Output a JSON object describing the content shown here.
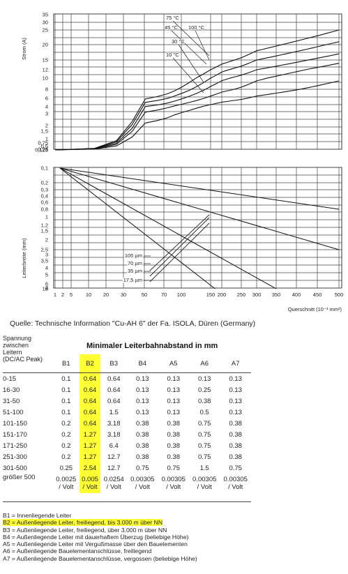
{
  "chart": {
    "top_ylabel": "Strom (A)",
    "bottom_ylabel": "Leiterbreite (mm)",
    "xlabel": "Querschnitt (10⁻³ mm²)",
    "top_ticks": [
      "35",
      "30",
      "25",
      "20",
      "15",
      "12",
      "10",
      "8",
      "6",
      "4",
      "3",
      "2",
      "1",
      "1,5",
      "0,75",
      "0,5",
      "0,25",
      "0,125"
    ],
    "bottom_ticks": [
      "0,1",
      "0,2",
      "0,3",
      "0,4",
      "0,6",
      "0,8",
      "1",
      "1,2",
      "1,5",
      "2",
      "2,5",
      "3",
      "3,5",
      "4",
      "5",
      "6",
      "7",
      "8",
      "10"
    ],
    "x_ticks": [
      "1",
      "2",
      "5",
      "10",
      "20",
      "30",
      "50",
      "70",
      "100",
      "150",
      "200",
      "250",
      "300",
      "350",
      "400",
      "450",
      "500"
    ],
    "temp_labels": [
      "75 °C",
      "45 °C",
      "100 °C",
      "30 °C",
      "10 °C"
    ],
    "thickness_labels": [
      "105 µm",
      "70 µm",
      "35 µm",
      "17,5 µm"
    ]
  },
  "chart_data": {
    "type": "line",
    "title": "",
    "xlabel": "Querschnitt (10⁻³ mm²)",
    "upper_panel": {
      "ylabel": "Strom (A)",
      "x": [
        1,
        50,
        150,
        300,
        500
      ],
      "series": [
        {
          "name": "10 °C",
          "values": [
            0.125,
            2.2,
            4.5,
            6.5,
            9.5
          ]
        },
        {
          "name": "30 °C",
          "values": [
            0.125,
            3.2,
            6.5,
            9.5,
            14
          ]
        },
        {
          "name": "45 °C",
          "values": [
            0.125,
            4.0,
            8.5,
            12,
            17
          ]
        },
        {
          "name": "75 °C",
          "values": [
            0.125,
            5.0,
            10,
            15,
            21
          ]
        },
        {
          "name": "100 °C",
          "values": [
            0.125,
            5.8,
            12,
            18,
            25
          ]
        }
      ]
    },
    "lower_panel": {
      "ylabel": "Leiterbreite (mm)",
      "series": [
        {
          "name": "105 µm",
          "x": [
            1,
            500
          ],
          "values": [
            0.1,
            0.8
          ]
        },
        {
          "name": "70 µm",
          "x": [
            1,
            500
          ],
          "values": [
            0.1,
            2.5
          ]
        },
        {
          "name": "35 µm",
          "x": [
            1,
            350
          ],
          "values": [
            0.1,
            10
          ]
        },
        {
          "name": "17,5 µm",
          "x": [
            1,
            170
          ],
          "values": [
            0.1,
            10
          ]
        }
      ]
    }
  },
  "source": "Quelle: Technische Information \"Cu-AH 6\" der Fa. ISOLA, Düren (Germany)",
  "table": {
    "header_left": [
      "Spannung",
      "zwischen",
      "Leitern",
      "(DC/AC Peak)"
    ],
    "title": "Minimaler Leiterbahnabstand in mm",
    "columns": [
      "B1",
      "B2",
      "B3",
      "B4",
      "A5",
      "A6",
      "A7"
    ],
    "rows": [
      {
        "label": "0-15",
        "cells": [
          "0.1",
          "0.64",
          "0.64",
          "0.13",
          "0.13",
          "0.13",
          "0.13"
        ]
      },
      {
        "label": "16-30",
        "cells": [
          "0.1",
          "0.64",
          "0.64",
          "0.13",
          "0.13",
          "0.25",
          "0.13"
        ]
      },
      {
        "label": "31-50",
        "cells": [
          "0.1",
          "0.64",
          "0.64",
          "0.13",
          "0.13",
          "0.38",
          "0.13"
        ]
      },
      {
        "label": "51-100",
        "cells": [
          "0.1",
          "0.64",
          "1.5",
          "0.13",
          "0.13",
          "0.5",
          "0.13"
        ]
      },
      {
        "label": "101-150",
        "cells": [
          "0.2",
          "0.64",
          "3.18",
          "0.38",
          "0.38",
          "0.75",
          "0.38"
        ]
      },
      {
        "label": "151-170",
        "cells": [
          "0.2",
          "1.27",
          "3.18",
          "0.38",
          "0.38",
          "0.75",
          "0.38"
        ]
      },
      {
        "label": "171-250",
        "cells": [
          "0.2",
          "1.27",
          "6.4",
          "0.38",
          "0.38",
          "0.75",
          "0.38"
        ]
      },
      {
        "label": "251-300",
        "cells": [
          "0.2",
          "1.27",
          "12.7",
          "0.38",
          "0.38",
          "0.75",
          "0.38"
        ]
      },
      {
        "label": "301-500",
        "cells": [
          "0.25",
          "2.54",
          "12.7",
          "0.75",
          "0.75",
          "1.5",
          "0.75"
        ]
      }
    ],
    "last_row": {
      "label": "größer 500",
      "cells": [
        "0.0025",
        "0.005",
        "0.0254",
        "0.00305",
        "0.00305",
        "0.00305",
        "0.00305"
      ],
      "unit": "/ Volt"
    }
  },
  "legend": [
    "B1 = Innenliegende Leiter",
    "B2 = Außenliegende Leiter, freiliegend, bis 3.000 m über NN",
    "B3 = Außenliegende Leiter, freiliegend, über 3.000 m über NN",
    "B4 = Außenliegende Leiter mit dauerhaftem Überzug (beliebige Höhe)",
    "A5 = Außenliegende Leiter mit Vergußmasse über den Bauelementen",
    "A6 = Außenliegende Bauelementanschlüsse, freiliegend",
    "A7 = Außenliegende Bauelementanschlüsse, vergossen (beliebige Höhe)"
  ],
  "colors": {
    "highlight": "#ffff33",
    "grid": "#333333"
  }
}
